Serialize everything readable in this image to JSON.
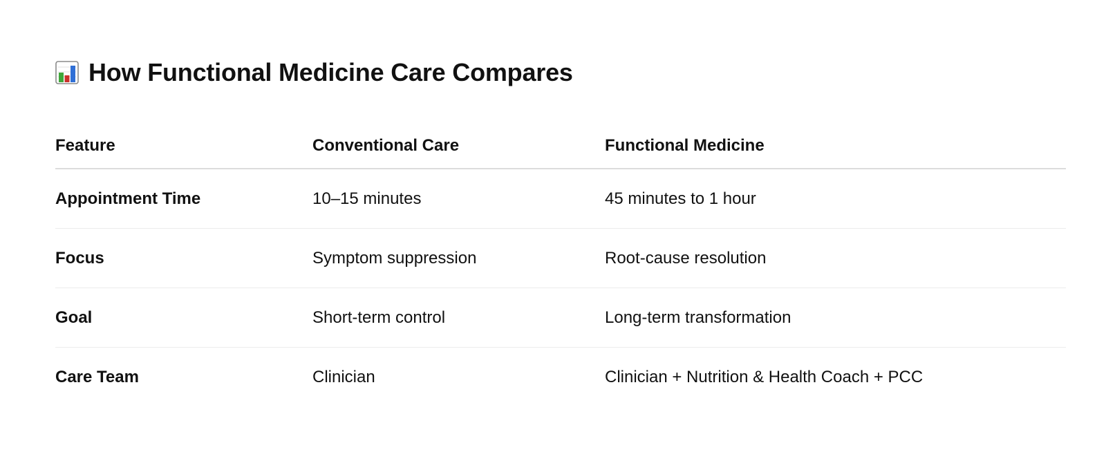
{
  "heading": {
    "icon": "bar-chart-icon",
    "title": "How Functional Medicine Care Compares"
  },
  "table": {
    "columns": [
      "Feature",
      "Conventional Care",
      "Functional Medicine"
    ],
    "rows": [
      {
        "feature": "Appointment Time",
        "conventional": "10–15 minutes",
        "functional": "45 minutes to 1 hour"
      },
      {
        "feature": "Focus",
        "conventional": "Symptom suppression",
        "functional": "Root-cause resolution"
      },
      {
        "feature": "Goal",
        "conventional": "Short-term control",
        "functional": "Long-term transformation"
      },
      {
        "feature": "Care Team",
        "conventional": "Clinician",
        "functional": "Clinician + Nutrition & Health Coach + PCC"
      }
    ]
  },
  "colors": {
    "bar_green": "#3fa63a",
    "bar_red": "#c9302c",
    "bar_blue": "#2f6fd6",
    "icon_frame": "#7a7a7a"
  }
}
